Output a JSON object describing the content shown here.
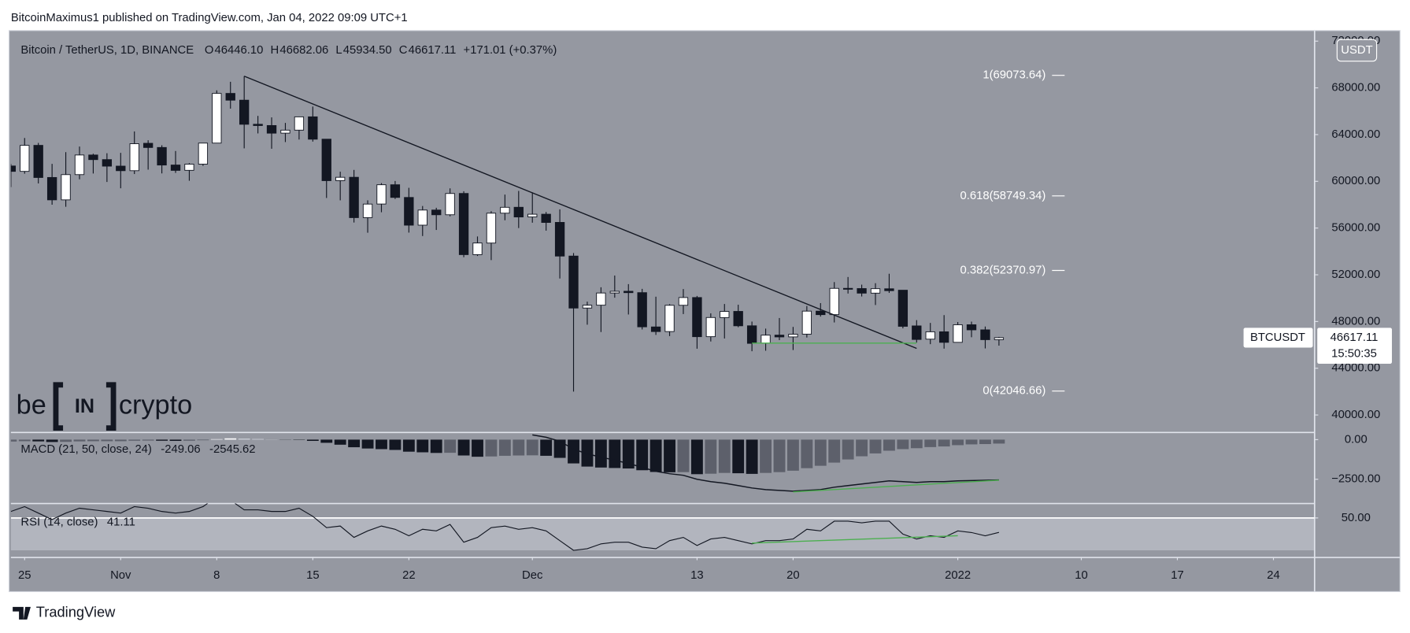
{
  "header": {
    "publisher": "BitcoinMaximus1 published on TradingView.com, Jan 04, 2022 09:09 UTC+1"
  },
  "legend": {
    "symbol": "Bitcoin / TetherUS, 1D, BINANCE",
    "letters": [
      "O",
      "H",
      "L",
      "C"
    ],
    "values": [
      "46446.10",
      "46682.06",
      "45934.50",
      "46617.11"
    ],
    "change": "+171.01 (+0.37%)"
  },
  "watermark": {
    "left": "be",
    "mid": "IN",
    "right": "crypto"
  },
  "price_badge": {
    "symbol": "BTCUSDT",
    "countdown": "15:50:35",
    "currency": "USDT"
  },
  "footer": {
    "brand": "TradingView"
  },
  "chart_data": {
    "type": "candlestick",
    "up_color": "#ffffff",
    "down_color": "#131722",
    "wick_color": "#131722",
    "x": [
      "2021-10-24",
      "2021-10-25",
      "2021-10-26",
      "2021-10-27",
      "2021-10-28",
      "2021-10-29",
      "2021-10-30",
      "2021-10-31",
      "2021-11-01",
      "2021-11-02",
      "2021-11-03",
      "2021-11-04",
      "2021-11-05",
      "2021-11-06",
      "2021-11-07",
      "2021-11-08",
      "2021-11-09",
      "2021-11-10",
      "2021-11-11",
      "2021-11-12",
      "2021-11-13",
      "2021-11-14",
      "2021-11-15",
      "2021-11-16",
      "2021-11-17",
      "2021-11-18",
      "2021-11-19",
      "2021-11-20",
      "2021-11-21",
      "2021-11-22",
      "2021-11-23",
      "2021-11-24",
      "2021-11-25",
      "2021-11-26",
      "2021-11-27",
      "2021-11-28",
      "2021-11-29",
      "2021-11-30",
      "2021-12-01",
      "2021-12-02",
      "2021-12-03",
      "2021-12-04",
      "2021-12-05",
      "2021-12-06",
      "2021-12-07",
      "2021-12-08",
      "2021-12-09",
      "2021-12-10",
      "2021-12-11",
      "2021-12-12",
      "2021-12-13",
      "2021-12-14",
      "2021-12-15",
      "2021-12-16",
      "2021-12-17",
      "2021-12-18",
      "2021-12-19",
      "2021-12-20",
      "2021-12-21",
      "2021-12-22",
      "2021-12-23",
      "2021-12-24",
      "2021-12-25",
      "2021-12-26",
      "2021-12-27",
      "2021-12-28",
      "2021-12-29",
      "2021-12-30",
      "2021-12-31",
      "2022-01-01",
      "2022-01-02",
      "2022-01-03",
      "2022-01-04"
    ],
    "open": [
      61312,
      60852,
      63078,
      60328,
      58413,
      60575,
      62253,
      61859,
      61300,
      60911,
      63254,
      62896,
      61395,
      60940,
      61470,
      63273,
      67525,
      66947,
      64883,
      64775,
      64123,
      64380,
      65520,
      63607,
      60059,
      60345,
      56891,
      58057,
      59707,
      58618,
      56247,
      57541,
      57138,
      58961,
      53723,
      54716,
      57274,
      57777,
      56950,
      57184,
      56484,
      53601,
      49152,
      49397,
      50441,
      50588,
      50471,
      47535,
      47140,
      49389,
      50053,
      46702,
      48336,
      48864,
      47632,
      46133,
      46834,
      46682,
      46918,
      48887,
      48588,
      50838,
      50820,
      50428,
      50802,
      50679,
      47623,
      46490,
      47120,
      46216,
      47722,
      47286,
      46446.1
    ],
    "high": [
      61490,
      63710,
      63293,
      61496,
      62499,
      62980,
      62359,
      62405,
      62437,
      64270,
      63516,
      63086,
      62595,
      61560,
      63286,
      67789,
      68524,
      69000,
      65600,
      65473,
      65000,
      65550,
      66401,
      63617,
      60823,
      60977,
      58373,
      59846,
      60029,
      59444,
      57887,
      57735,
      59398,
      59150,
      55280,
      57445,
      58865,
      59176,
      59053,
      57375,
      57600,
      53859,
      49699,
      50930,
      51936,
      51200,
      50797,
      50125,
      49485,
      50777,
      50189,
      48700,
      49500,
      49436,
      47995,
      47392,
      48300,
      47537,
      49328,
      49576,
      51375,
      51810,
      51156,
      51280,
      52088,
      50679,
      48119,
      47879,
      48548,
      47954,
      47990,
      47570,
      46682.06
    ],
    "low": [
      59510,
      60650,
      59817,
      58000,
      57820,
      60174,
      60673,
      59945,
      59405,
      60624,
      61000,
      60677,
      60721,
      60050,
      61322,
      63273,
      66222,
      62822,
      64100,
      62788,
      63360,
      63576,
      63400,
      58574,
      58373,
      56474,
      55600,
      57353,
      58486,
      55610,
      55317,
      55837,
      57000,
      53500,
      53610,
      53256,
      56666,
      56000,
      56458,
      55777,
      51680,
      42000,
      47727,
      47100,
      50039,
      48600,
      47320,
      46852,
      46751,
      48638,
      45672,
      46290,
      46547,
      47511,
      45456,
      45500,
      46406,
      45558,
      46630,
      48421,
      47920,
      50394,
      50142,
      49412,
      50449,
      47414,
      46201,
      46060,
      45678,
      46208,
      46654,
      45696,
      45934.5
    ],
    "close": [
      60852,
      63078,
      60328,
      58413,
      60575,
      62253,
      61859,
      61300,
      60911,
      63219,
      62896,
      61395,
      60937,
      61470,
      63273,
      67525,
      66947,
      64882,
      64774,
      64122,
      64380,
      65519,
      63607,
      60058,
      60345,
      56892,
      58052,
      59707,
      58622,
      56247,
      57541,
      57138,
      58960,
      53726,
      54721,
      57274,
      57776,
      56950,
      57184,
      56480,
      53601,
      49152,
      49396,
      50441,
      50588,
      50471,
      47545,
      47140,
      49389,
      50053,
      46702,
      48343,
      48864,
      47632,
      46131,
      46834,
      46681,
      46914,
      48889,
      48588,
      50838,
      50821,
      50428,
      50809,
      50640,
      47588,
      46464,
      47120,
      46216,
      47722,
      47286,
      46446,
      46617.11
    ],
    "xlim": [
      "2021-10-24",
      "2022-01-27"
    ],
    "xticks": [
      {
        "value": "2021-10-25",
        "label": "25"
      },
      {
        "value": "2021-11-01",
        "label": "Nov"
      },
      {
        "value": "2021-11-08",
        "label": "8"
      },
      {
        "value": "2021-11-15",
        "label": "15"
      },
      {
        "value": "2021-11-22",
        "label": "22"
      },
      {
        "value": "2021-12-01",
        "label": "Dec"
      },
      {
        "value": "2021-12-13",
        "label": "13"
      },
      {
        "value": "2021-12-20",
        "label": "20"
      },
      {
        "value": "2022-01-01",
        "label": "2022"
      },
      {
        "value": "2022-01-10",
        "label": "10"
      },
      {
        "value": "2022-01-17",
        "label": "17"
      },
      {
        "value": "2022-01-24",
        "label": "24"
      }
    ],
    "ylim": [
      38500,
      72750
    ],
    "yticks": [
      {
        "value": 40000,
        "label": "40000.00"
      },
      {
        "value": 44000,
        "label": "44000.00"
      },
      {
        "value": 48000,
        "label": "48000.00"
      },
      {
        "value": 52000,
        "label": "52000.00"
      },
      {
        "value": 56000,
        "label": "56000.00"
      },
      {
        "value": 60000,
        "label": "60000.00"
      },
      {
        "value": 64000,
        "label": "64000.00"
      },
      {
        "value": 68000,
        "label": "68000.00"
      },
      {
        "value": 72000,
        "label": "72000.00"
      }
    ],
    "grid": false,
    "fib_levels": [
      {
        "label": "1(69073.64)",
        "value": 69073.64
      },
      {
        "label": "0.618(58749.34)",
        "value": 58749.34
      },
      {
        "label": "0.382(52370.97)",
        "value": 52370.97
      },
      {
        "label": "0(42046.66)",
        "value": 42046.66
      }
    ],
    "trendlines": [
      {
        "x": [
          "2021-11-10",
          "2021-12-29"
        ],
        "y": [
          69000,
          45700
        ],
        "color": "#131722"
      },
      {
        "x": [
          "2021-12-17",
          "2021-12-29"
        ],
        "y": [
          46150,
          46150
        ],
        "color": "#4caf50"
      }
    ],
    "indicators": [
      {
        "type": "macd",
        "title": "MACD (21, 50, close, 24)",
        "histogram": [
          -120,
          -100,
          -110,
          -150,
          -140,
          -110,
          -100,
          -100,
          -100,
          -70,
          -60,
          -70,
          -80,
          -70,
          -40,
          30,
          80,
          60,
          40,
          10,
          -10,
          -20,
          -80,
          -200,
          -320,
          -480,
          -560,
          -600,
          -650,
          -760,
          -800,
          -840,
          -830,
          -1000,
          -1080,
          -1060,
          -1020,
          -1000,
          -990,
          -1020,
          -1150,
          -1500,
          -1700,
          -1760,
          -1790,
          -1820,
          -1930,
          -2040,
          -2060,
          -2050,
          -2180,
          -2150,
          -2100,
          -2120,
          -2160,
          -2100,
          -2050,
          -1960,
          -1800,
          -1650,
          -1450,
          -1250,
          -1050,
          -870,
          -700,
          -600,
          -540,
          -470,
          -430,
          -350,
          -300,
          -280,
          -249.06
        ],
        "hist_colors": {
          "pos_up": "#ffffff",
          "pos_down": "#d1d4dc",
          "neg_up": "#5d606b",
          "neg_down": "#131722"
        },
        "series": [
          {
            "name": "MACD",
            "color": "#131722",
            "values": [
              null,
              null,
              null,
              null,
              null,
              null,
              null,
              null,
              null,
              null,
              null,
              null,
              null,
              null,
              null,
              null,
              null,
              null,
              null,
              null,
              null,
              null,
              null,
              null,
              null,
              null,
              null,
              null,
              null,
              null,
              null,
              null,
              null,
              null,
              null,
              null,
              null,
              null,
              300,
              150,
              -100,
              -600,
              -900,
              -1100,
              -1300,
              -1500,
              -1750,
              -2000,
              -2150,
              -2250,
              -2500,
              -2650,
              -2750,
              -2900,
              -3050,
              -3150,
              -3200,
              -3250,
              -3200,
              -3150,
              -3000,
              -2900,
              -2800,
              -2700,
              -2600,
              -2650,
              -2700,
              -2650,
              -2650,
              -2600,
              -2580,
              -2560,
              -2545.62
            ]
          }
        ],
        "ylim": [
          -4030,
          450
        ],
        "yticks": [
          {
            "value": 0,
            "label": "0.00"
          },
          {
            "value": -2500,
            "label": "−2500.00"
          }
        ],
        "trendlines": [
          {
            "x": [
              "2021-12-20",
              "2022-01-04"
            ],
            "y": [
              -3300,
              -2560
            ],
            "color": "#4caf50"
          }
        ]
      },
      {
        "type": "rsi",
        "title": "RSI (14, close)",
        "series": [
          {
            "name": "RSI",
            "color": "#131722",
            "values": [
              54,
              57,
              53,
              49,
              53,
              56,
              55,
              54,
              53,
              57,
              56,
              54,
              53,
              54,
              57,
              63,
              61,
              55,
              55,
              54,
              54,
              56,
              51,
              44,
              45,
              38,
              42,
              45,
              43,
              39,
              43,
              42,
              46,
              35,
              38,
              44,
              45,
              43,
              44,
              42,
              36,
              30,
              31,
              34,
              35,
              35,
              32,
              31,
              36,
              38,
              33,
              37,
              38,
              36,
              34,
              36,
              36,
              37,
              43,
              42,
              48,
              48,
              47,
              48,
              48,
              40,
              37,
              39,
              38,
              42,
              41,
              39,
              41.11
            ]
          }
        ],
        "band": [
          30,
          50
        ],
        "band_color": "#b2b5be",
        "ylim": [
          25.6,
          58.9
        ],
        "yticks": [
          {
            "value": 50,
            "label": "50.00"
          }
        ],
        "trendlines": [
          {
            "x": [
              "2021-12-17",
              "2022-01-01"
            ],
            "y": [
              34.5,
              39
            ],
            "color": "#4caf50"
          }
        ]
      }
    ]
  }
}
